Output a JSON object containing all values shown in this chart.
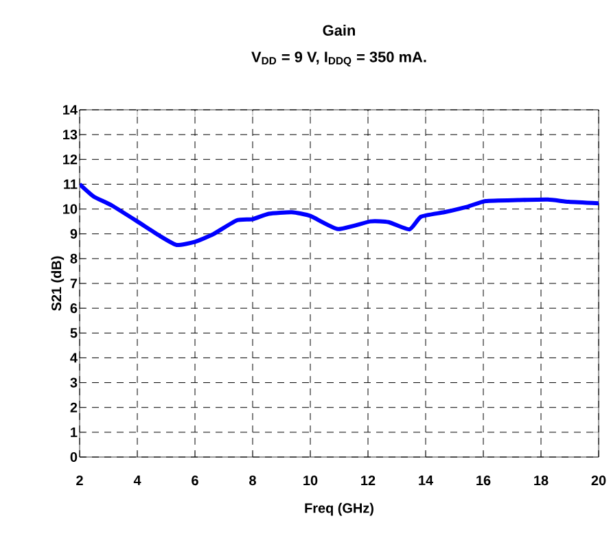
{
  "chart_data": {
    "type": "line",
    "title": "Gain",
    "subtitle": "V$_{DD}$ = 9 V, I$_{DDQ}$ = 350 mA.",
    "xlabel": "Freq (GHz)",
    "ylabel": "S21 (dB)",
    "x": [
      2,
      2.48,
      3.12,
      4,
      4.72,
      5.36,
      6,
      6.64,
      7.44,
      8,
      8.56,
      9.36,
      10,
      10.96,
      12.08,
      12.72,
      13.44,
      13.84,
      14.64,
      15.44,
      16.08,
      17.2,
      18.24,
      18.96,
      20
    ],
    "series": [
      {
        "color": "#0000ff",
        "values": [
          11.0,
          10.51,
          10.14,
          9.5,
          8.96,
          8.55,
          8.68,
          8.99,
          9.54,
          9.59,
          9.81,
          9.87,
          9.72,
          9.19,
          9.5,
          9.47,
          9.18,
          9.69,
          9.87,
          10.09,
          10.32,
          10.36,
          10.38,
          10.29,
          10.23
        ]
      }
    ],
    "xlim": [
      2,
      20
    ],
    "ylim": [
      0,
      14
    ],
    "xticks": [
      2,
      4,
      6,
      8,
      10,
      12,
      14,
      16,
      18,
      20
    ],
    "yticks": [
      0,
      1,
      2,
      3,
      4,
      5,
      6,
      7,
      8,
      9,
      10,
      11,
      12,
      13,
      14
    ],
    "grid": true,
    "marker": "none",
    "line_style": "solid"
  }
}
